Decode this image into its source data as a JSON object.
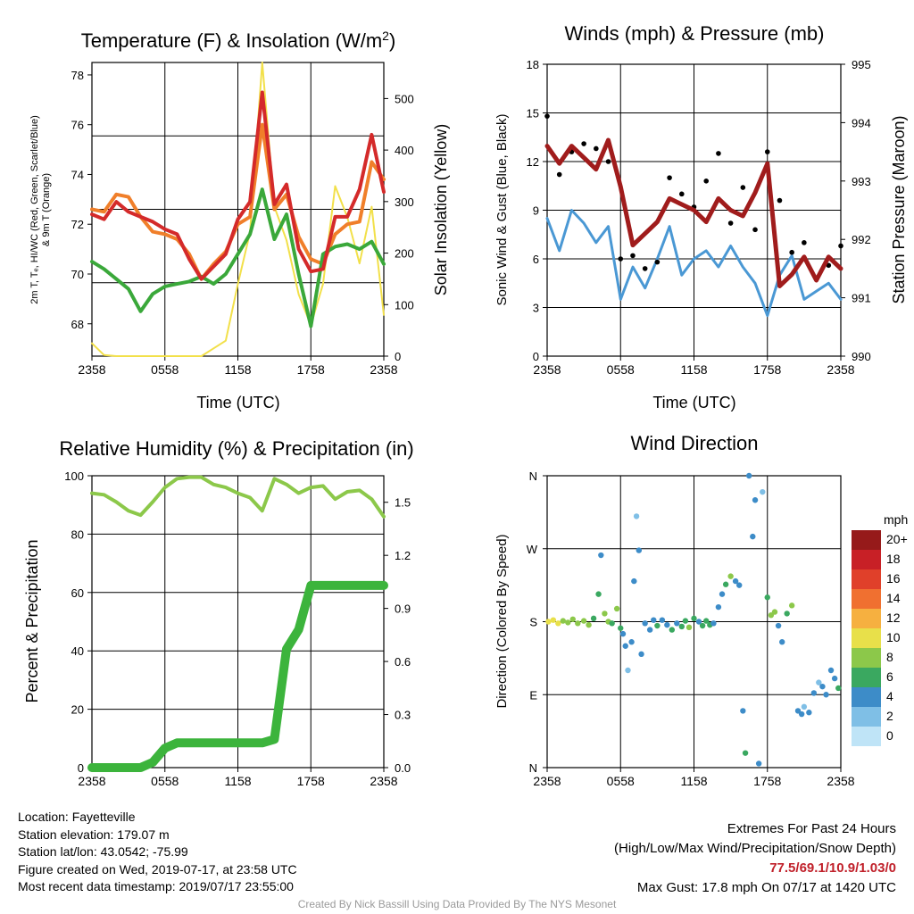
{
  "time_ticks": [
    "2358",
    "0558",
    "1158",
    "1758",
    "2358"
  ],
  "panels": {
    "temp": {
      "xlabel": "Time (UTC)",
      "ylabel_left": "2m T, Tₑ, HI/WC (Red, Green, Scarlet/Blue) & 9m T (Orange)",
      "ylabel_right": "Solar Insolation (Yellow)"
    },
    "wind": {
      "title": "Winds (mph) & Pressure (mb)",
      "xlabel": "Time (UTC)",
      "ylabel_left": "Sonic Wind & Gust (Blue, Black)",
      "ylabel_right": "Station Pressure (Maroon)"
    },
    "rh": {
      "title": "Relative Humidity (%) & Precipitation (in)",
      "ylabel_left": "Percent & Precipitation"
    },
    "dir": {
      "title": "Wind Direction",
      "ylabel_left": "Direction (Colored By Speed)",
      "legend_title": "mph",
      "legend_labels": [
        "20+",
        "18",
        "16",
        "14",
        "12",
        "10",
        "8",
        "6",
        "4",
        "2",
        "0"
      ]
    }
  },
  "info": {
    "location": "Location: Fayetteville",
    "elevation": "Station elevation: 179.07 m",
    "latlon": "Station lat/lon: 43.0542; -75.99",
    "created": "Figure created on Wed, 2019-07-17, at 23:58 UTC",
    "recent": "Most recent data timestamp: 2019/07/17 23:55:00"
  },
  "extremes": {
    "line1": "Extremes For Past 24 Hours",
    "line2": "(High/Low/Max Wind/Precipitation/Snow Depth)",
    "values": "77.5/69.1/10.9/1.03/0",
    "gust": "Max Gust: 17.8 mph On 07/17 at 1420 UTC"
  },
  "credit": "Created By Nick Bassill Using Data Provided By The NYS Mesonet",
  "colors": {
    "red": "#d42a2a",
    "orange": "#f07f2a",
    "green": "#3aa83a",
    "yellow": "#f2e04a",
    "blue": "#4a98d4",
    "maroon": "#a01c1c",
    "rh_green": "#8cc84a",
    "precip_green": "#3cb43c",
    "grid": "#000000"
  },
  "chart_data": [
    {
      "type": "line",
      "title": "Temperature (F) & Insolation (W/m²)",
      "xlabel": "Time (UTC)",
      "x": [
        0,
        1,
        2,
        3,
        4,
        5,
        6,
        7,
        8,
        9,
        10,
        11,
        12,
        13,
        14,
        15,
        16,
        17,
        18,
        19,
        20,
        21,
        22,
        23,
        24
      ],
      "x_ticks": [
        "2358",
        "0558",
        "1158",
        "1758",
        "2358"
      ],
      "ylim_left": [
        66.7,
        78.5
      ],
      "ylim_right": [
        0,
        570
      ],
      "series": [
        {
          "name": "2m T",
          "color": "#d42a2a",
          "axis": "left",
          "values": [
            72.4,
            72.2,
            72.9,
            72.5,
            72.3,
            72.1,
            71.8,
            71.6,
            70.6,
            69.8,
            70.3,
            70.8,
            72.2,
            72.9,
            77.3,
            72.8,
            73.6,
            71.0,
            70.1,
            70.2,
            72.3,
            72.3,
            73.4,
            75.6,
            73.3
          ]
        },
        {
          "name": "9m T",
          "color": "#f07f2a",
          "axis": "left",
          "values": [
            72.6,
            72.5,
            73.2,
            73.1,
            72.3,
            71.7,
            71.6,
            71.4,
            70.8,
            69.8,
            70.4,
            70.9,
            72.0,
            72.3,
            76.0,
            72.6,
            73.2,
            71.5,
            70.6,
            70.4,
            71.6,
            72.0,
            72.1,
            74.5,
            73.8
          ]
        },
        {
          "name": "Te",
          "color": "#3aa83a",
          "axis": "left",
          "values": [
            70.5,
            70.2,
            69.8,
            69.4,
            68.5,
            69.2,
            69.5,
            69.6,
            69.7,
            69.9,
            69.6,
            70.0,
            70.8,
            71.6,
            73.4,
            71.4,
            72.4,
            70.0,
            67.9,
            70.8,
            71.1,
            71.2,
            71.0,
            71.3,
            70.4
          ]
        },
        {
          "name": "Solar Insolation",
          "color": "#f2e04a",
          "axis": "right",
          "values": [
            25,
            2,
            0,
            0,
            0,
            0,
            0,
            0,
            0,
            0,
            15,
            30,
            140,
            240,
            570,
            290,
            225,
            120,
            60,
            140,
            330,
            270,
            180,
            290,
            80
          ]
        }
      ]
    },
    {
      "type": "line",
      "title": "Winds (mph) & Pressure (mb)",
      "xlabel": "Time (UTC)",
      "x": [
        0,
        1,
        2,
        3,
        4,
        5,
        6,
        7,
        8,
        9,
        10,
        11,
        12,
        13,
        14,
        15,
        16,
        17,
        18,
        19,
        20,
        21,
        22,
        23,
        24
      ],
      "x_ticks": [
        "2358",
        "0558",
        "1158",
        "1758",
        "2358"
      ],
      "ylim_left": [
        0,
        18
      ],
      "ylim_right": [
        990,
        995
      ],
      "series": [
        {
          "name": "Sonic Wind",
          "color": "#4a98d4",
          "axis": "left",
          "values": [
            8.5,
            6.5,
            9.0,
            8.2,
            7.0,
            8.0,
            3.5,
            5.5,
            4.2,
            6.0,
            8.0,
            5.0,
            6.0,
            6.5,
            5.5,
            6.8,
            5.5,
            4.5,
            2.5,
            5.0,
            6.2,
            3.5,
            4.0,
            4.5,
            3.5
          ]
        },
        {
          "name": "Gust",
          "color": "#000000",
          "axis": "left",
          "values": [
            14.8,
            11.2,
            12.6,
            13.1,
            12.8,
            12.0,
            6.0,
            6.2,
            5.4,
            5.8,
            11.0,
            10.0,
            9.2,
            10.8,
            12.5,
            8.2,
            10.4,
            7.8,
            12.6,
            9.6,
            6.4,
            7.0,
            4.8,
            5.6,
            6.8
          ]
        },
        {
          "name": "Station Pressure",
          "color": "#a01c1c",
          "axis": "right",
          "values": [
            993.6,
            993.3,
            993.6,
            993.4,
            993.2,
            993.7,
            992.9,
            991.9,
            992.1,
            992.3,
            992.7,
            992.6,
            992.5,
            992.3,
            992.7,
            992.5,
            992.4,
            992.8,
            993.3,
            991.2,
            991.4,
            991.7,
            991.3,
            991.7,
            991.5
          ]
        }
      ]
    },
    {
      "type": "line",
      "title": "Relative Humidity (%) & Precipitation (in)",
      "x": [
        0,
        1,
        2,
        3,
        4,
        5,
        6,
        7,
        8,
        9,
        10,
        11,
        12,
        13,
        14,
        15,
        16,
        17,
        18,
        19,
        20,
        21,
        22,
        23,
        24
      ],
      "x_ticks": [
        "2358",
        "0558",
        "1158",
        "1758",
        "2358"
      ],
      "ylim_left": [
        0,
        100
      ],
      "ylim_right": [
        0,
        1.65
      ],
      "series": [
        {
          "name": "Relative Humidity",
          "color": "#8cc84a",
          "axis": "left",
          "values": [
            94,
            93.5,
            91,
            88,
            86.5,
            91,
            96,
            99,
            99.5,
            99.5,
            97,
            96,
            94,
            92.5,
            88,
            99,
            97,
            94,
            96,
            96.5,
            92,
            94.5,
            95,
            92,
            86
          ]
        },
        {
          "name": "Precipitation",
          "color": "#3cb43c",
          "axis": "right",
          "values": [
            0,
            0,
            0,
            0,
            0,
            0.03,
            0.11,
            0.14,
            0.14,
            0.14,
            0.14,
            0.14,
            0.14,
            0.14,
            0.14,
            0.16,
            0.67,
            0.78,
            1.03,
            1.03,
            1.03,
            1.03,
            1.03,
            1.03,
            1.03
          ]
        }
      ]
    },
    {
      "type": "scatter",
      "title": "Wind Direction",
      "y_ticks": [
        "N",
        "E",
        "S",
        "W",
        "N"
      ],
      "ylim": [
        0,
        360
      ],
      "points": [
        [
          0.1,
          180,
          9
        ],
        [
          0.5,
          182,
          10
        ],
        [
          0.9,
          178,
          9
        ],
        [
          1.3,
          181,
          8
        ],
        [
          1.7,
          179,
          8
        ],
        [
          2.1,
          183,
          7
        ],
        [
          2.5,
          178,
          8
        ],
        [
          3.0,
          181,
          7
        ],
        [
          3.4,
          176,
          7
        ],
        [
          3.8,
          184,
          6
        ],
        [
          4.2,
          214,
          5
        ],
        [
          4.4,
          262,
          4
        ],
        [
          4.7,
          190,
          8
        ],
        [
          5.0,
          180,
          7
        ],
        [
          5.3,
          178,
          6
        ],
        [
          5.7,
          196,
          7
        ],
        [
          6.0,
          172,
          5
        ],
        [
          6.2,
          165,
          4
        ],
        [
          6.4,
          150,
          3
        ],
        [
          6.6,
          120,
          2
        ],
        [
          6.9,
          155,
          4
        ],
        [
          7.1,
          230,
          3
        ],
        [
          7.3,
          310,
          2
        ],
        [
          7.5,
          268,
          3
        ],
        [
          7.7,
          140,
          3
        ],
        [
          8.0,
          178,
          4
        ],
        [
          8.4,
          170,
          3
        ],
        [
          8.7,
          182,
          4
        ],
        [
          9.0,
          175,
          5
        ],
        [
          9.4,
          182,
          4
        ],
        [
          9.8,
          176,
          3
        ],
        [
          10.2,
          170,
          5
        ],
        [
          10.6,
          178,
          4
        ],
        [
          11.0,
          174,
          6
        ],
        [
          11.3,
          181,
          5
        ],
        [
          11.6,
          173,
          7
        ],
        [
          12.0,
          184,
          5
        ],
        [
          12.4,
          180,
          4
        ],
        [
          12.7,
          175,
          5
        ],
        [
          13.0,
          181,
          6
        ],
        [
          13.3,
          176,
          6
        ],
        [
          13.6,
          178,
          4
        ],
        [
          14.0,
          198,
          4
        ],
        [
          14.3,
          214,
          3
        ],
        [
          14.6,
          226,
          6
        ],
        [
          15.0,
          236,
          7
        ],
        [
          15.4,
          230,
          4
        ],
        [
          15.7,
          225,
          3
        ],
        [
          16.0,
          70,
          3
        ],
        [
          16.2,
          18,
          6
        ],
        [
          16.5,
          360,
          4
        ],
        [
          16.8,
          285,
          3
        ],
        [
          17.0,
          330,
          3
        ],
        [
          17.3,
          5,
          3
        ],
        [
          17.6,
          340,
          2
        ],
        [
          18.0,
          210,
          6
        ],
        [
          18.3,
          188,
          7
        ],
        [
          18.6,
          192,
          8
        ],
        [
          18.9,
          175,
          4
        ],
        [
          19.2,
          155,
          3
        ],
        [
          19.6,
          190,
          6
        ],
        [
          20.0,
          200,
          8
        ],
        [
          20.5,
          70,
          4
        ],
        [
          20.8,
          66,
          3
        ],
        [
          21.0,
          75,
          2
        ],
        [
          21.4,
          68,
          3
        ],
        [
          21.8,
          92,
          3
        ],
        [
          22.2,
          105,
          2
        ],
        [
          22.5,
          100,
          3
        ],
        [
          22.8,
          90,
          4
        ],
        [
          23.2,
          120,
          4
        ],
        [
          23.5,
          110,
          3
        ],
        [
          23.8,
          98,
          5
        ]
      ]
    }
  ]
}
